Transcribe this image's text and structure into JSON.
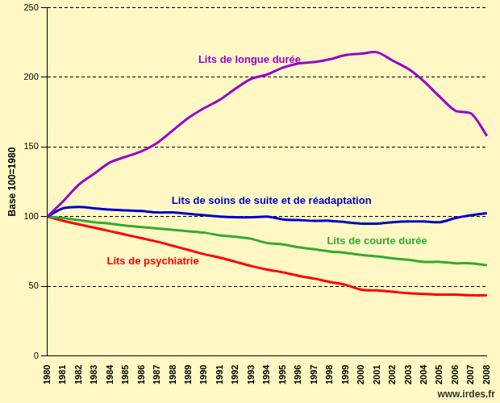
{
  "chart_data": {
    "type": "line",
    "y_label": "Base 100=1980",
    "annotations": [
      "www.irdes.fr"
    ],
    "categories": [
      "1980",
      "1981",
      "1982",
      "1983",
      "1984",
      "1985",
      "1986",
      "1987",
      "1988",
      "1989",
      "1990",
      "1991",
      "1992",
      "1993",
      "1994",
      "1995",
      "1996",
      "1997",
      "1998",
      "1999",
      "2000",
      "2001",
      "2002",
      "2003",
      "2004",
      "2005",
      "2006",
      "2007",
      "2008"
    ],
    "series": [
      {
        "name": "Lits de longue durée",
        "color": "#9900cc",
        "values": [
          100,
          111,
          123,
          131,
          139,
          143,
          147,
          153,
          162,
          171,
          178,
          184,
          192,
          199,
          202,
          207,
          210,
          211,
          213,
          216,
          217,
          218,
          212,
          206,
          197,
          186,
          176,
          174,
          158
        ]
      },
      {
        "name": "Lits de soins de suite et de réadaptation",
        "color": "#0000cc",
        "values": [
          100,
          106,
          107,
          106,
          105,
          104.5,
          104,
          103,
          103,
          102,
          101,
          100,
          99.5,
          99.5,
          100,
          98,
          97.5,
          97,
          97,
          96,
          95,
          95,
          96,
          96.5,
          96.5,
          96,
          99,
          101,
          102.5
        ]
      },
      {
        "name": "Lits de courte durée",
        "color": "#33aa33",
        "values": [
          100,
          99,
          97.5,
          96,
          95,
          93.5,
          92.5,
          91.5,
          90.5,
          89.5,
          88.5,
          86.5,
          85.5,
          84,
          81,
          80,
          78,
          76.5,
          75,
          74,
          72.5,
          71.5,
          70,
          69,
          67.5,
          67.5,
          66.5,
          66.5,
          65
        ]
      },
      {
        "name": "Lits de psychiatrie",
        "color": "#ff0000",
        "values": [
          100,
          97,
          94.5,
          92,
          89.5,
          87,
          84.5,
          82,
          79,
          76,
          73,
          70.5,
          67.5,
          64.5,
          62,
          60,
          57.5,
          55.5,
          53,
          51,
          47.5,
          47,
          46,
          45,
          44.5,
          44,
          44,
          43.5,
          43.5
        ]
      }
    ],
    "ylim": [
      0,
      250
    ],
    "yticks": [
      0,
      50,
      100,
      150,
      200,
      250
    ],
    "grid": true
  }
}
